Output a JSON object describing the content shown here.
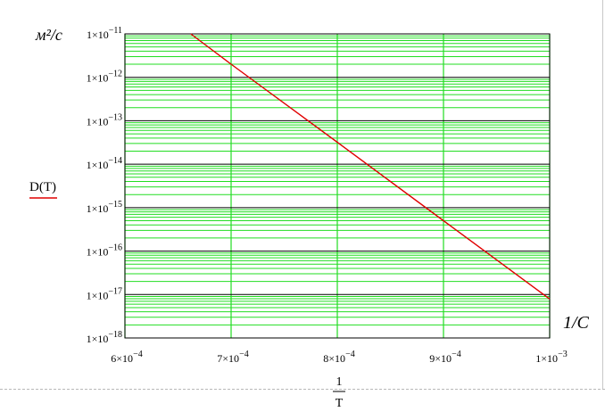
{
  "chart_data": {
    "type": "line",
    "ylabel_units": "м²/с",
    "xlabel_units": "1/С",
    "legend": {
      "label": "D(T)",
      "color": "#e00000",
      "placement": "left"
    },
    "x_expression": {
      "numerator": "1",
      "denominator": "T"
    },
    "x_scale": "linear",
    "y_scale": "log",
    "xlim": [
      0.0006,
      0.001
    ],
    "ylim": [
      1e-18,
      1e-11
    ],
    "x_ticks": [
      {
        "mant": "6",
        "exp": "−4"
      },
      {
        "mant": "7",
        "exp": "−4"
      },
      {
        "mant": "8",
        "exp": "−4"
      },
      {
        "mant": "9",
        "exp": "−4"
      },
      {
        "mant": "1",
        "exp": "−3"
      }
    ],
    "y_ticks": [
      {
        "mant": "1",
        "exp": "−11"
      },
      {
        "mant": "1",
        "exp": "−12"
      },
      {
        "mant": "1",
        "exp": "−13"
      },
      {
        "mant": "1",
        "exp": "−14"
      },
      {
        "mant": "1",
        "exp": "−15"
      },
      {
        "mant": "1",
        "exp": "−16"
      },
      {
        "mant": "1",
        "exp": "−17"
      },
      {
        "mant": "1",
        "exp": "−18"
      }
    ],
    "series": [
      {
        "name": "D(T)",
        "color": "#e00000",
        "x": [
          0.000662,
          0.0007,
          0.0008,
          0.0009,
          0.001
        ],
        "y": [
          1e-11,
          2e-12,
          3.2e-14,
          5e-16,
          7.9e-18
        ]
      }
    ],
    "grid": true,
    "grid_color": "#22dd22",
    "decade_line_color": "#000000"
  }
}
